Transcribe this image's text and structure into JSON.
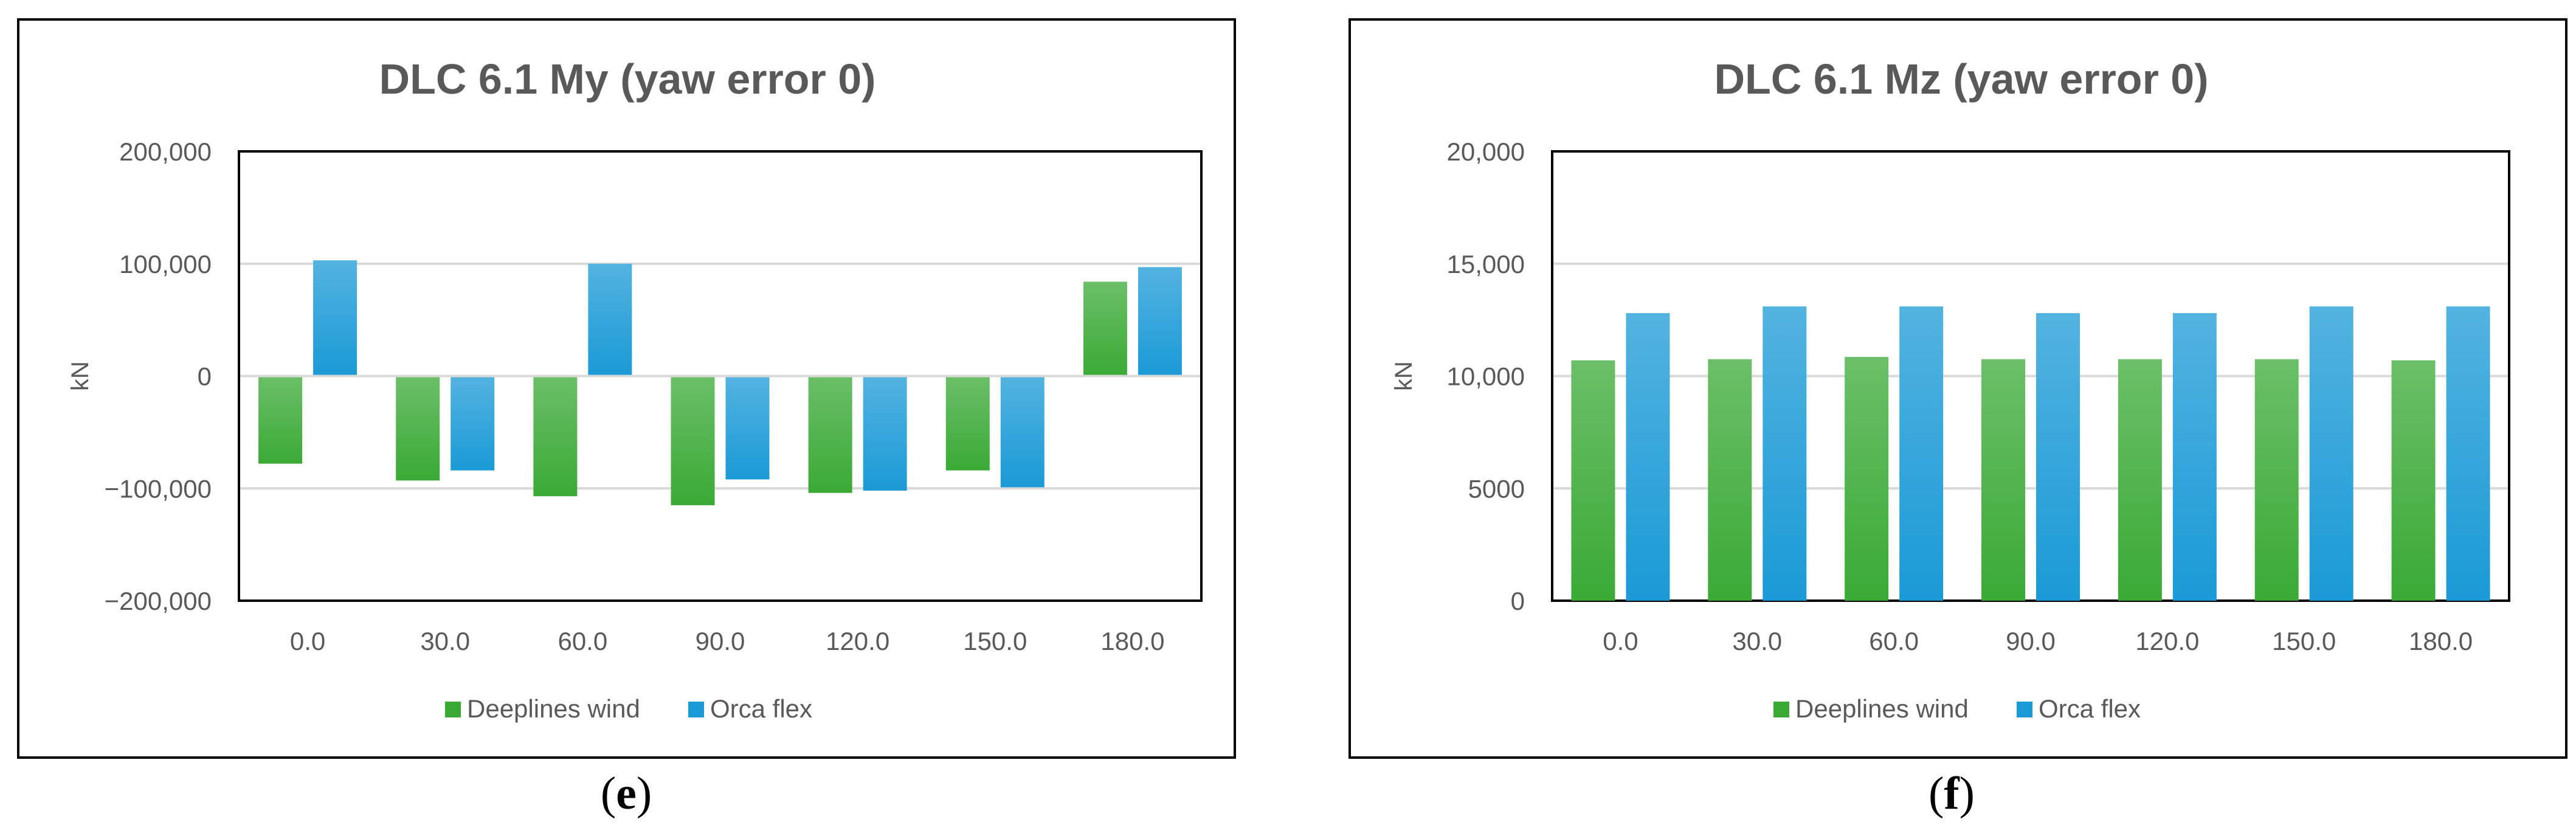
{
  "chart_data": [
    {
      "type": "bar",
      "title": "DLC 6.1 My (yaw error 0)",
      "xlabel": "",
      "ylabel": "kN",
      "ylim": [
        -200000,
        200000
      ],
      "yticks": [
        200000,
        100000,
        0,
        -100000,
        -200000
      ],
      "ytick_labels": [
        "200,000",
        "100,000",
        "0",
        "−100,000",
        "−200,000"
      ],
      "categories": [
        "0.0",
        "30.0",
        "60.0",
        "90.0",
        "120.0",
        "150.0",
        "180.0"
      ],
      "series": [
        {
          "name": "Deeplines wind",
          "color": "#3aaa35",
          "values": [
            -78000,
            -93000,
            -107000,
            -115000,
            -104000,
            -84000,
            84000
          ]
        },
        {
          "name": "Orca flex",
          "color": "#1a9ad6",
          "values": [
            103000,
            -84000,
            100000,
            -92000,
            -102000,
            -99000,
            97000
          ]
        }
      ],
      "grid": true,
      "legend": "bottom"
    },
    {
      "type": "bar",
      "title": "DLC 6.1 Mz (yaw error 0)",
      "xlabel": "",
      "ylabel": "kN",
      "ylim": [
        0,
        20000
      ],
      "yticks": [
        20000,
        15000,
        10000,
        5000,
        0
      ],
      "ytick_labels": [
        "20,000",
        "15,000",
        "10,000",
        "5000",
        "0"
      ],
      "categories": [
        "0.0",
        "30.0",
        "60.0",
        "90.0",
        "120.0",
        "150.0",
        "180.0"
      ],
      "series": [
        {
          "name": "Deeplines wind",
          "color": "#3aaa35",
          "values": [
            10700,
            10750,
            10850,
            10750,
            10750,
            10750,
            10700
          ]
        },
        {
          "name": "Orca flex",
          "color": "#1a9ad6",
          "values": [
            12800,
            13100,
            13100,
            12800,
            12800,
            13100,
            13100
          ]
        }
      ],
      "grid": true,
      "legend": "bottom"
    }
  ],
  "captions": [
    "e",
    "f"
  ]
}
